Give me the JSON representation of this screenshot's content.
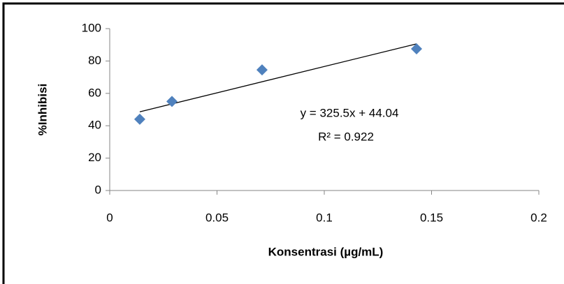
{
  "chart_data": {
    "type": "scatter",
    "x_label": "Konsentrasi (µg/mL)",
    "y_label": "%Inhibisi",
    "x": [
      0.014,
      0.029,
      0.071,
      0.143
    ],
    "values": [
      44,
      55,
      74.5,
      87.5
    ],
    "color": "#4f81bd",
    "xlim": [
      0,
      0.2
    ],
    "xticks": [
      0,
      0.05,
      0.1,
      0.15,
      0.2
    ],
    "ylim": [
      0,
      100
    ],
    "yticks": [
      0,
      20,
      40,
      60,
      80,
      100
    ],
    "grid": false,
    "trendline": {
      "slope": 325.5,
      "intercept": 44.04,
      "equation": "y = 325.5x + 44.04",
      "r_squared": "R² = 0.922"
    }
  }
}
